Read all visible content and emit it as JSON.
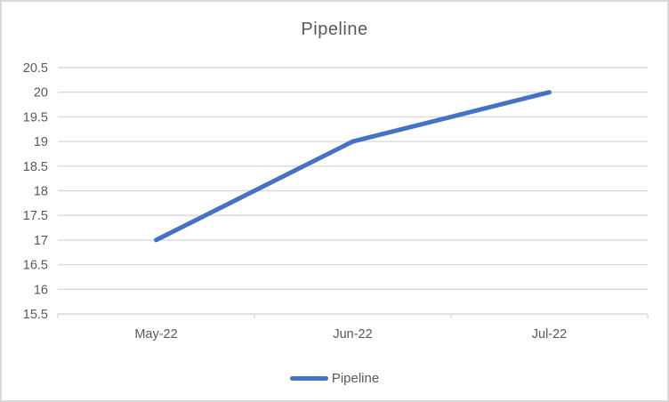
{
  "chart": {
    "title": "Pipeline"
  },
  "chart_data": {
    "type": "line",
    "title": "Pipeline",
    "categories": [
      "May-22",
      "Jun-22",
      "Jul-22"
    ],
    "series": [
      {
        "name": "Pipeline",
        "values": [
          17,
          19,
          20
        ],
        "color": "#4472C4"
      }
    ],
    "xlabel": "",
    "ylabel": "",
    "ylim": [
      15.5,
      20.5
    ],
    "ytick_step": 0.5,
    "ytick_labels": [
      "15.5",
      "16",
      "16.5",
      "17",
      "17.5",
      "18",
      "18.5",
      "19",
      "19.5",
      "20",
      "20.5"
    ],
    "grid": true,
    "legend_position": "bottom",
    "legend_entries": [
      "Pipeline"
    ],
    "colors": {
      "series_line": "#4472C4",
      "gridline": "#D9D9D9",
      "axis_line": "#D9D9D9",
      "tick_mark": "#D9D9D9",
      "axis_text": "#595959",
      "title_text": "#595959",
      "border": "#D9D9D9",
      "background": "#FFFFFF"
    }
  }
}
